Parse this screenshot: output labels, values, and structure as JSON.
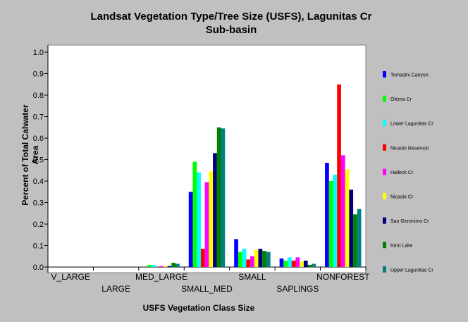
{
  "chart_data": {
    "type": "bar",
    "title_line1": "Landsat Vegetation Type/Tree Size (USFS), Lagunitas Cr",
    "title_line2": "Sub-basin",
    "xlabel": "USFS Vegetation Class Size",
    "ylabel_line1": "Percent of Total Calwater",
    "ylabel_line2": "Area",
    "ylim": [
      0,
      1.0
    ],
    "yticks": [
      "0.0",
      "0.1",
      "0.2",
      "0.3",
      "0.4",
      "0.5",
      "0.6",
      "0.7",
      "0.8",
      "0.9",
      "1.0"
    ],
    "categories": [
      "V_LARGE",
      "LARGE",
      "MED_LARGE",
      "SMALL_MED",
      "SMALL",
      "SAPLINGS",
      "NONFOREST"
    ],
    "legend_position": "right",
    "grid": false,
    "series": [
      {
        "name": "Tomasini Canyon",
        "color": "#0000ff",
        "values": [
          0,
          0,
          0,
          0.35,
          0.13,
          0.04,
          0.485
        ]
      },
      {
        "name": "Olema Cr",
        "color": "#00ff00",
        "values": [
          0,
          0,
          0.01,
          0.49,
          0.07,
          0.03,
          0.4
        ]
      },
      {
        "name": "Lower Lagunitas Cr",
        "color": "#00ffff",
        "values": [
          0,
          0,
          0.01,
          0.44,
          0.085,
          0.045,
          0.43
        ]
      },
      {
        "name": "Nicasio Reservoir",
        "color": "#ff0000",
        "values": [
          0,
          0,
          0,
          0.085,
          0.035,
          0.03,
          0.85
        ]
      },
      {
        "name": "Halleck Cr",
        "color": "#ff00ff",
        "values": [
          0,
          0,
          0.005,
          0.395,
          0.05,
          0.045,
          0.52
        ]
      },
      {
        "name": "Nicasio Cr",
        "color": "#ffff00",
        "values": [
          0,
          0,
          0.005,
          0.445,
          0.08,
          0.025,
          0.455
        ]
      },
      {
        "name": "San Geronimo Cr",
        "color": "#000080",
        "values": [
          0,
          0,
          0.005,
          0.53,
          0.085,
          0.03,
          0.36
        ]
      },
      {
        "name": "Kent Lake",
        "color": "#008000",
        "values": [
          0,
          0,
          0.02,
          0.65,
          0.075,
          0.01,
          0.245
        ]
      },
      {
        "name": "Upper Lagunitas Cr",
        "color": "#008080",
        "values": [
          0,
          0,
          0.015,
          0.645,
          0.07,
          0.015,
          0.27
        ]
      }
    ]
  }
}
